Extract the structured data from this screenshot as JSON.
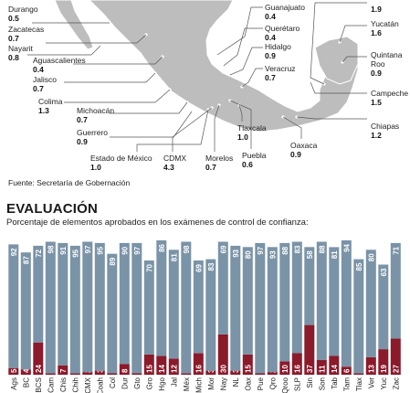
{
  "map": {
    "fill_color": "#bdbdbd",
    "line_color": "#555555",
    "states": [
      {
        "id": "durango",
        "label": "Durango",
        "value": "0.5"
      },
      {
        "id": "zacatecas",
        "label": "Zacatecas",
        "value": "0.7"
      },
      {
        "id": "nayarit",
        "label": "Nayarit",
        "value": "0.8"
      },
      {
        "id": "aguascalientes",
        "label": "Aguascalientes",
        "value": "0.4"
      },
      {
        "id": "jalisco",
        "label": "Jalisco",
        "value": "0.7"
      },
      {
        "id": "colima",
        "label": "Colima",
        "value": "1.3"
      },
      {
        "id": "michoacan",
        "label": "Michoacán",
        "value": "0.7"
      },
      {
        "id": "guerrero",
        "label": "Guerrero",
        "value": "0.9"
      },
      {
        "id": "estado-de-mexico",
        "label": "Estado de México",
        "value": "1.0"
      },
      {
        "id": "cdmx",
        "label": "CDMX",
        "value": "4.3"
      },
      {
        "id": "morelos",
        "label": "Morelos",
        "value": "0.7"
      },
      {
        "id": "puebla",
        "label": "Puebla",
        "value": "0.6"
      },
      {
        "id": "tlaxcala",
        "label": "Tlaxcala",
        "value": "1.0"
      },
      {
        "id": "oaxaca",
        "label": "Oaxaca",
        "value": "0.9"
      },
      {
        "id": "chiapas",
        "label": "Chiapas",
        "value": "1.2"
      },
      {
        "id": "guanajuato",
        "label": "Guanajuato",
        "value": "0.4"
      },
      {
        "id": "queretaro",
        "label": "Querétaro",
        "value": "0.4"
      },
      {
        "id": "hidalgo",
        "label": "Hidalgo",
        "value": "0.9"
      },
      {
        "id": "veracruz",
        "label": "Veracruz",
        "value": "0.7"
      },
      {
        "id": "tabasco",
        "label": "",
        "value": "1.9"
      },
      {
        "id": "yucatan",
        "label": "Yucatán",
        "value": "1.6"
      },
      {
        "id": "quintana-roo",
        "label": "Quintana Roo",
        "value": "0.9"
      },
      {
        "id": "campeche",
        "label": "Campeche",
        "value": "1.5"
      }
    ]
  },
  "source": "Fuente: Secretaría de Gobernación",
  "title": "EVALUACIÓN",
  "subtitle": "Porcentaje de elementos aprobados en los exámenes de control de confianza:",
  "chart_data": {
    "type": "bar",
    "stacked": true,
    "categories": [
      "Ags",
      "BC",
      "BCS",
      "Cam",
      "Chis",
      "Chih",
      "CMX",
      "Coah",
      "Col",
      "Dur",
      "Gto",
      "Gro",
      "Hgo",
      "Jal",
      "Méx",
      "Mich",
      "Mor",
      "Nay",
      "NL",
      "Oax",
      "Pue",
      "Qro",
      "Qroo",
      "SLP",
      "Sin",
      "Son",
      "Tab",
      "Tam",
      "Tlax",
      "Ver",
      "Yuc",
      "Zac"
    ],
    "series": [
      {
        "color": "#8b1a2b",
        "values": [
          5,
          4,
          24,
          1,
          7,
          1,
          2,
          3,
          1,
          8,
          1,
          15,
          14,
          12,
          1,
          16,
          3,
          30,
          3,
          15,
          1,
          2,
          10,
          16,
          37,
          11,
          14,
          6,
          1,
          13,
          19,
          27
        ]
      },
      {
        "color": "#7a93a7",
        "values": [
          92,
          87,
          72,
          98,
          91,
          95,
          97,
          95,
          89,
          90,
          97,
          70,
          86,
          81,
          98,
          69,
          83,
          69,
          93,
          80,
          97,
          93,
          88,
          83,
          58,
          88,
          81,
          94,
          85,
          80,
          63,
          71
        ]
      }
    ],
    "ylim": [
      0,
      100
    ],
    "grid": false
  }
}
